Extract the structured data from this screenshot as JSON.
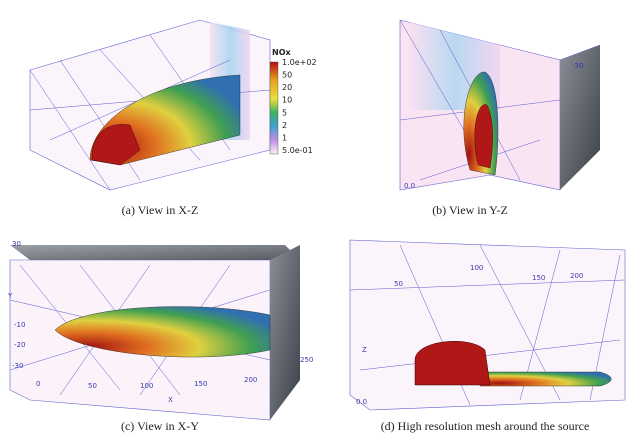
{
  "panels": [
    {
      "caption": "(a)  View in X-Z"
    },
    {
      "caption": "(b)  View in Y-Z",
      "ticks": [
        "-30",
        "0.0"
      ]
    },
    {
      "caption": "(c)  View in X-Y",
      "ticks": [
        "30",
        "Y",
        "-10",
        "-20",
        "-30",
        "0",
        "50",
        "100",
        "150",
        "200",
        "250",
        "X"
      ]
    },
    {
      "caption": "(d)  High resolution mesh around the source",
      "ticks": [
        "50",
        "100",
        "150",
        "200",
        "Z",
        "0.0"
      ]
    }
  ],
  "colorbar": {
    "title": "NOx",
    "labels": [
      "1.0e+02",
      "50",
      "20",
      "10",
      "5",
      "2",
      "1",
      "5.0e-01"
    ]
  }
}
